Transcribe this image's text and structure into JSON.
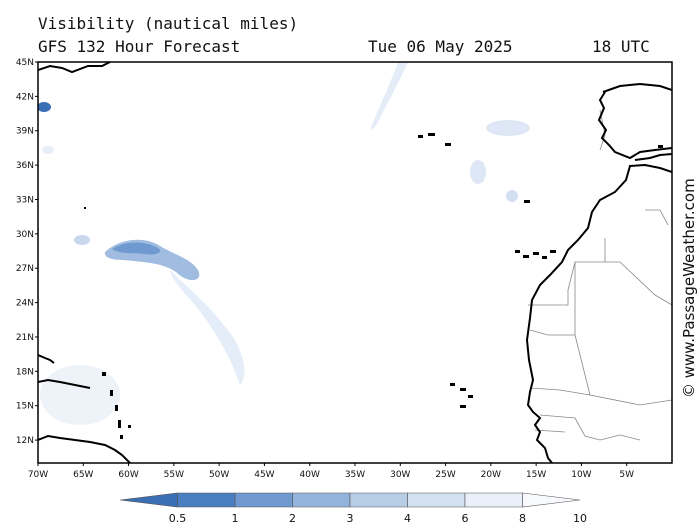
{
  "header": {
    "title": "Visibility (nautical miles)",
    "subtitle": "GFS 132 Hour Forecast",
    "date": "Tue 06 May 2025",
    "time": "18 UTC"
  },
  "credit": "© www.PassageWeather.com",
  "map": {
    "lat_range": [
      10,
      45
    ],
    "lon_range": [
      -70,
      0
    ],
    "lat_ticks": [
      "45N",
      "42N",
      "39N",
      "36N",
      "33N",
      "30N",
      "27N",
      "24N",
      "21N",
      "18N",
      "15N",
      "12N"
    ],
    "lon_ticks": [
      "70W",
      "65W",
      "60W",
      "55W",
      "50W",
      "45W",
      "40W",
      "35W",
      "30W",
      "25W",
      "20W",
      "15W",
      "10W",
      "5W"
    ],
    "coast_color": "#000000",
    "border_color": "#888888"
  },
  "legend": {
    "labels": [
      "0.5",
      "1",
      "2",
      "3",
      "4",
      "6",
      "8",
      "10"
    ],
    "colors": [
      "#3a6fb5",
      "#4a7fc2",
      "#6f99cf",
      "#94b3dc",
      "#b7cce7",
      "#d3e0f1",
      "#e9f0f9",
      "#f7f9fd"
    ]
  }
}
